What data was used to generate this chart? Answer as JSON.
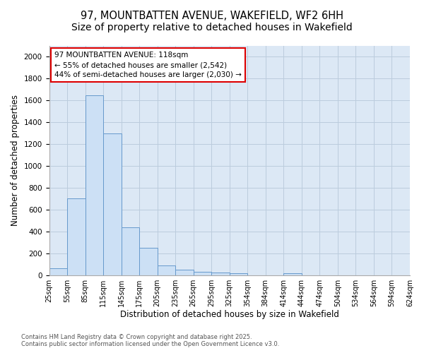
{
  "title_line1": "97, MOUNTBATTEN AVENUE, WAKEFIELD, WF2 6HH",
  "title_line2": "Size of property relative to detached houses in Wakefield",
  "xlabel": "Distribution of detached houses by size in Wakefield",
  "ylabel": "Number of detached properties",
  "bar_values": [
    65,
    700,
    1650,
    1300,
    440,
    250,
    90,
    50,
    30,
    25,
    15,
    0,
    0,
    15,
    0,
    0,
    0,
    0,
    0,
    0
  ],
  "tick_labels": [
    "25sqm",
    "55sqm",
    "85sqm",
    "115sqm",
    "145sqm",
    "175sqm",
    "205sqm",
    "235sqm",
    "265sqm",
    "295sqm",
    "325sqm",
    "354sqm",
    "384sqm",
    "414sqm",
    "444sqm",
    "474sqm",
    "504sqm",
    "534sqm",
    "564sqm",
    "594sqm",
    "624sqm"
  ],
  "bar_color": "#cce0f5",
  "bar_edge_color": "#6699cc",
  "grid_color": "#bbccdd",
  "background_color": "#dce8f5",
  "ylim": [
    0,
    2100
  ],
  "yticks": [
    0,
    200,
    400,
    600,
    800,
    1000,
    1200,
    1400,
    1600,
    1800,
    2000
  ],
  "annotation_line1": "97 MOUNTBATTEN AVENUE: 118sqm",
  "annotation_line2": "← 55% of detached houses are smaller (2,542)",
  "annotation_line3": "44% of semi-detached houses are larger (2,030) →",
  "annotation_box_color": "#dd0000",
  "footer_line1": "Contains HM Land Registry data © Crown copyright and database right 2025.",
  "footer_line2": "Contains public sector information licensed under the Open Government Licence v3.0.",
  "title_fontsize": 10.5,
  "axis_label_fontsize": 8.5,
  "tick_fontsize": 7,
  "annotation_fontsize": 7.5,
  "footer_fontsize": 6
}
